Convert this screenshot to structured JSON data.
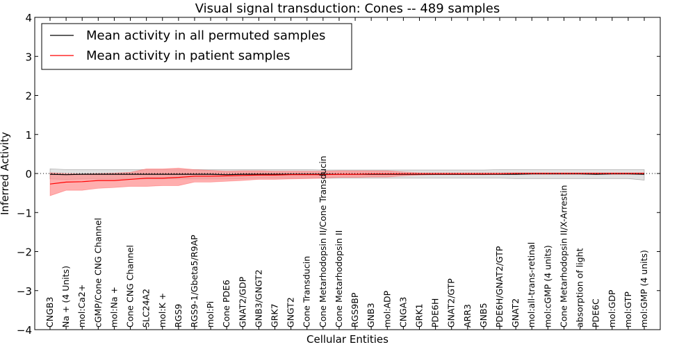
{
  "chart_data": {
    "type": "line",
    "title": "Visual signal transduction: Cones -- 489 samples",
    "xlabel": "Cellular Entities",
    "ylabel": "Inferred Activity",
    "ylim": [
      -4,
      4
    ],
    "yticks": [
      4,
      3,
      2,
      1,
      0,
      -1,
      -2,
      -3,
      -4
    ],
    "ytick_labels": [
      "4",
      "3",
      "2",
      "1",
      "0",
      "−1",
      "−2",
      "−3",
      "−4"
    ],
    "legend_position": "top-left",
    "reference_line": 0,
    "categories": [
      "CNGB3",
      "Na + (4 Units)",
      "mol:Ca2+",
      "cGMP/Cone CNG Channel",
      "mol:Na +",
      "Cone CNG Channel",
      "SLC24A2",
      "mol:K +",
      "RGS9",
      "RGS9-1/Gbeta5/R9AP",
      "mol:Pi",
      "Cone PDE6",
      "GNAT2/GDP",
      "GNB3/GNGT2",
      "GRK7",
      "GNGT2",
      "Cone Transducin",
      "Cone Metarhodopsin II/Cone Transducin",
      "Cone Metarhodopsin II",
      "RGS9BP",
      "GNB3",
      "mol:ADP",
      "CNGA3",
      "GRK1",
      "PDE6H",
      "GNAT2/GTP",
      "ARR3",
      "GNB5",
      "PDE6H/GNAT2/GTP",
      "GNAT2",
      "mol:all-trans-retinal",
      "mol:cGMP (4 units)",
      "Cone Metarhodopsin II/X-Arrestin",
      "absorption of light",
      "PDE6C",
      "mol:GDP",
      "mol:GTP",
      "mol:GMP (4 units)"
    ],
    "series": [
      {
        "name": "Mean activity in all permuted samples",
        "color": "#000000",
        "band_color": "#c8c8c8",
        "values": [
          -0.02,
          -0.03,
          -0.02,
          -0.02,
          -0.02,
          -0.02,
          -0.02,
          -0.02,
          -0.02,
          -0.02,
          -0.02,
          -0.03,
          -0.02,
          -0.02,
          -0.02,
          -0.02,
          -0.02,
          -0.02,
          -0.02,
          -0.02,
          -0.02,
          -0.02,
          -0.02,
          -0.02,
          -0.02,
          -0.02,
          -0.02,
          -0.02,
          -0.02,
          -0.02,
          -0.01,
          -0.01,
          -0.01,
          -0.01,
          -0.02,
          -0.01,
          -0.01,
          -0.02
        ],
        "lower": [
          -0.14,
          -0.15,
          -0.14,
          -0.14,
          -0.14,
          -0.14,
          -0.14,
          -0.14,
          -0.14,
          -0.14,
          -0.14,
          -0.14,
          -0.13,
          -0.12,
          -0.12,
          -0.12,
          -0.12,
          -0.12,
          -0.12,
          -0.12,
          -0.12,
          -0.12,
          -0.12,
          -0.12,
          -0.12,
          -0.12,
          -0.12,
          -0.12,
          -0.12,
          -0.13,
          -0.13,
          -0.13,
          -0.13,
          -0.13,
          -0.13,
          -0.13,
          -0.13,
          -0.17
        ],
        "upper": [
          0.12,
          0.1,
          0.1,
          0.1,
          0.1,
          0.1,
          0.1,
          0.1,
          0.1,
          0.1,
          0.1,
          0.1,
          0.1,
          0.1,
          0.1,
          0.1,
          0.1,
          0.09,
          0.09,
          0.09,
          0.09,
          0.09,
          0.09,
          0.09,
          0.09,
          0.09,
          0.09,
          0.09,
          0.1,
          0.1,
          0.1,
          0.1,
          0.1,
          0.1,
          0.1,
          0.1,
          0.1,
          0.1
        ]
      },
      {
        "name": "Mean activity in patient samples",
        "color": "#ff0000",
        "band_color": "#ff8c8c",
        "values": [
          -0.27,
          -0.22,
          -0.21,
          -0.18,
          -0.18,
          -0.15,
          -0.12,
          -0.12,
          -0.1,
          -0.07,
          -0.07,
          -0.06,
          -0.05,
          -0.04,
          -0.04,
          -0.03,
          -0.03,
          -0.03,
          -0.02,
          -0.02,
          -0.01,
          -0.01,
          -0.01,
          -0.01,
          -0.01,
          -0.01,
          -0.01,
          -0.01,
          -0.01,
          0.0,
          0.0,
          0.0,
          0.0,
          0.0,
          0.0,
          0.0,
          0.0,
          0.0
        ],
        "lower": [
          -0.57,
          -0.43,
          -0.43,
          -0.38,
          -0.36,
          -0.33,
          -0.33,
          -0.31,
          -0.31,
          -0.22,
          -0.22,
          -0.2,
          -0.18,
          -0.15,
          -0.15,
          -0.14,
          -0.13,
          -0.12,
          -0.1,
          -0.1,
          -0.09,
          -0.09,
          -0.06,
          -0.04,
          -0.03,
          -0.03,
          -0.03,
          -0.03,
          -0.02,
          -0.02,
          -0.02,
          -0.02,
          -0.02,
          -0.02,
          -0.02,
          -0.02,
          -0.02,
          -0.02
        ],
        "upper": [
          0.02,
          0.0,
          -0.01,
          0.0,
          0.01,
          0.03,
          0.12,
          0.12,
          0.14,
          0.1,
          0.08,
          0.06,
          0.07,
          0.07,
          0.06,
          0.06,
          0.06,
          0.06,
          0.07,
          0.07,
          0.07,
          0.07,
          0.04,
          0.02,
          0.02,
          0.02,
          0.02,
          0.02,
          0.02,
          0.02,
          0.02,
          0.02,
          0.02,
          0.02,
          0.02,
          0.02,
          0.02,
          0.02
        ]
      }
    ]
  }
}
